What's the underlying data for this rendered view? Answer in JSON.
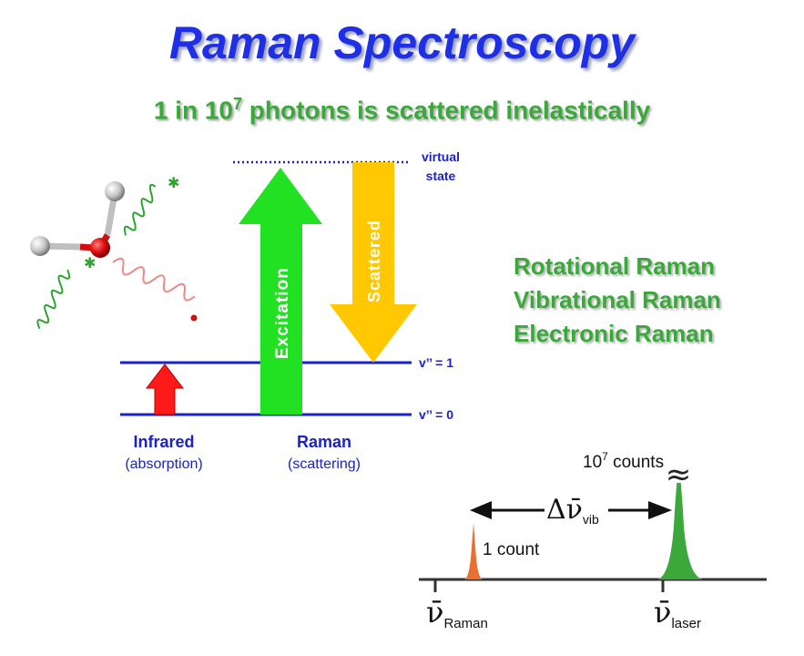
{
  "title": "Raman Spectroscopy",
  "subtitle": {
    "prefix": "1 in 10",
    "exponent": "7",
    "suffix": " photons is scattered inelastically"
  },
  "energy_diagram": {
    "virtual_state_line1": "virtual",
    "virtual_state_line2": "state",
    "level_1": "v’’ = 1",
    "level_0": "v’’ = 0",
    "excitation_label": "Excitation",
    "scattered_label": "Scattered",
    "infrared_label": "Infrared",
    "infrared_sub": "(absorption)",
    "raman_label": "Raman",
    "raman_sub": "(scattering)"
  },
  "raman_types": [
    "Rotational Raman",
    "Vibrational Raman",
    "Electronic Raman"
  ],
  "spectrum": {
    "counts_base": "10",
    "counts_exp": "7",
    "counts_suffix": " counts",
    "one_count": "1 count",
    "delta_symbol": "Δν̄",
    "delta_sub": "vib",
    "raman_symbol": "ν̄",
    "raman_sub": "Raman",
    "laser_symbol": "ν̄",
    "laser_sub": "laser",
    "break_symbol": "≈"
  },
  "colors": {
    "title": "#1f2fe6",
    "green": "#3aa83a",
    "level_lines": "#1a22c8",
    "excitation_arrow": "#22e022",
    "scattered_arrow": "#ffc800",
    "infrared_arrow": "#ff1a1a",
    "raman_peak": "#e87030",
    "laser_peak": "#3ca83c"
  }
}
